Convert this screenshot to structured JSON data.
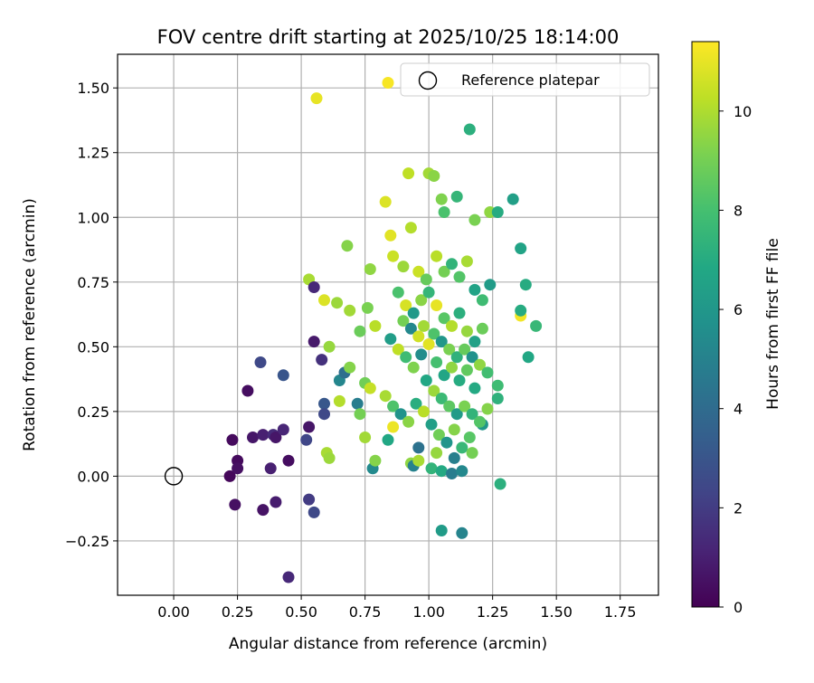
{
  "chart_data": {
    "type": "scatter",
    "title": "FOV centre drift starting at 2025/10/25 18:14:00",
    "xlabel": "Angular distance from reference (arcmin)",
    "ylabel": "Rotation from reference (arcmin)",
    "xlim": [
      -0.22,
      1.9
    ],
    "ylim": [
      -0.46,
      1.63
    ],
    "xticks": [
      0.0,
      0.25,
      0.5,
      0.75,
      1.0,
      1.25,
      1.5,
      1.75
    ],
    "xtick_labels": [
      "0.00",
      "0.25",
      "0.50",
      "0.75",
      "1.00",
      "1.25",
      "1.50",
      "1.75"
    ],
    "yticks": [
      -0.25,
      0.0,
      0.25,
      0.5,
      0.75,
      1.0,
      1.25,
      1.5
    ],
    "ytick_labels": [
      "−0.25",
      "0.00",
      "0.25",
      "0.50",
      "0.75",
      "1.00",
      "1.25",
      "1.50"
    ],
    "grid": true,
    "legend": {
      "placement": "top-right",
      "entry": "Reference platepar"
    },
    "reference_point": {
      "x": 0.0,
      "y": 0.0
    },
    "colorbar": {
      "label": "Hours from first FF file",
      "colormap": "viridis",
      "range": [
        0,
        11.4
      ],
      "ticks": [
        0,
        2,
        4,
        6,
        8,
        10
      ],
      "tick_labels": [
        "0",
        "2",
        "4",
        "6",
        "8",
        "10"
      ]
    },
    "points": [
      [
        0.56,
        1.46,
        11.0
      ],
      [
        1.16,
        1.34,
        7.2
      ],
      [
        0.84,
        1.52,
        11.3
      ],
      [
        0.83,
        1.06,
        10.8
      ],
      [
        0.92,
        1.17,
        10.3
      ],
      [
        0.93,
        0.96,
        10.1
      ],
      [
        1.0,
        1.17,
        9.8
      ],
      [
        1.02,
        1.16,
        9.4
      ],
      [
        1.05,
        1.07,
        9.2
      ],
      [
        1.11,
        1.08,
        7.5
      ],
      [
        1.06,
        1.02,
        8.1
      ],
      [
        1.33,
        1.07,
        6.4
      ],
      [
        0.68,
        0.89,
        9.3
      ],
      [
        0.85,
        0.93,
        10.9
      ],
      [
        0.86,
        0.85,
        10.5
      ],
      [
        0.77,
        0.8,
        9.5
      ],
      [
        0.53,
        0.76,
        9.9
      ],
      [
        0.55,
        0.73,
        1.3
      ],
      [
        0.59,
        0.68,
        10.8
      ],
      [
        0.64,
        0.67,
        9.7
      ],
      [
        0.69,
        0.64,
        9.8
      ],
      [
        0.76,
        0.65,
        9.1
      ],
      [
        0.73,
        0.56,
        8.8
      ],
      [
        0.79,
        0.58,
        10.2
      ],
      [
        0.55,
        0.52,
        0.8
      ],
      [
        0.61,
        0.5,
        9.6
      ],
      [
        0.58,
        0.45,
        1.6
      ],
      [
        0.65,
        0.37,
        5.2
      ],
      [
        0.67,
        0.4,
        4.1
      ],
      [
        0.69,
        0.42,
        9.3
      ],
      [
        0.72,
        0.28,
        4.8
      ],
      [
        0.73,
        0.24,
        9.0
      ],
      [
        0.75,
        0.36,
        8.9
      ],
      [
        0.77,
        0.34,
        10.4
      ],
      [
        0.65,
        0.29,
        10.1
      ],
      [
        0.59,
        0.28,
        3.1
      ],
      [
        0.59,
        0.24,
        2.5
      ],
      [
        0.6,
        0.09,
        9.9
      ],
      [
        0.61,
        0.07,
        9.7
      ],
      [
        0.75,
        0.15,
        9.8
      ],
      [
        0.78,
        0.03,
        5.4
      ],
      [
        0.79,
        0.06,
        9.3
      ],
      [
        0.84,
        0.14,
        6.8
      ],
      [
        0.86,
        0.19,
        11.1
      ],
      [
        0.93,
        0.05,
        9.5
      ],
      [
        0.94,
        0.04,
        5.0
      ],
      [
        0.96,
        0.06,
        9.9
      ],
      [
        1.01,
        0.03,
        7.4
      ],
      [
        1.05,
        0.02,
        6.9
      ],
      [
        1.09,
        0.01,
        4.8
      ],
      [
        1.13,
        0.02,
        5.3
      ],
      [
        1.05,
        -0.21,
        6.2
      ],
      [
        1.13,
        -0.22,
        5.1
      ],
      [
        1.28,
        -0.03,
        7.2
      ],
      [
        1.27,
        0.3,
        7.3
      ],
      [
        1.27,
        0.35,
        7.8
      ],
      [
        1.23,
        0.26,
        9.3
      ],
      [
        1.21,
        0.2,
        6.0
      ],
      [
        1.36,
        0.62,
        11.2
      ],
      [
        1.42,
        0.58,
        7.6
      ],
      [
        1.39,
        0.46,
        6.8
      ],
      [
        1.36,
        0.64,
        7.0
      ],
      [
        1.38,
        0.74,
        7.0
      ],
      [
        1.36,
        0.88,
        6.6
      ],
      [
        1.24,
        1.02,
        9.5
      ],
      [
        1.27,
        1.02,
        7.0
      ],
      [
        1.18,
        0.99,
        9.1
      ],
      [
        0.22,
        0.0,
        0.2
      ],
      [
        0.23,
        0.14,
        0.3
      ],
      [
        0.25,
        0.06,
        0.3
      ],
      [
        0.25,
        0.03,
        0.5
      ],
      [
        0.24,
        -0.11,
        0.5
      ],
      [
        0.29,
        0.33,
        0.4
      ],
      [
        0.31,
        0.15,
        0.7
      ],
      [
        0.34,
        0.44,
        2.5
      ],
      [
        0.35,
        0.16,
        1.0
      ],
      [
        0.38,
        0.03,
        1.0
      ],
      [
        0.39,
        0.16,
        1.4
      ],
      [
        0.4,
        0.15,
        0.7
      ],
      [
        0.4,
        -0.1,
        0.9
      ],
      [
        0.35,
        -0.13,
        0.6
      ],
      [
        0.43,
        0.39,
        3.0
      ],
      [
        0.43,
        0.18,
        1.2
      ],
      [
        0.45,
        0.06,
        0.4
      ],
      [
        0.52,
        0.14,
        2.4
      ],
      [
        0.53,
        0.19,
        0.7
      ],
      [
        0.53,
        -0.09,
        2.0
      ],
      [
        0.55,
        -0.14,
        2.5
      ],
      [
        0.45,
        -0.39,
        1.3
      ],
      [
        0.9,
        0.81,
        9.7
      ],
      [
        0.96,
        0.79,
        10.5
      ],
      [
        0.99,
        0.76,
        8.7
      ],
      [
        1.03,
        0.85,
        10.2
      ],
      [
        1.06,
        0.79,
        9.0
      ],
      [
        1.09,
        0.82,
        7.4
      ],
      [
        1.12,
        0.77,
        8.3
      ],
      [
        1.15,
        0.83,
        9.9
      ],
      [
        1.18,
        0.72,
        6.6
      ],
      [
        1.21,
        0.68,
        7.8
      ],
      [
        1.24,
        0.74,
        6.2
      ],
      [
        0.88,
        0.71,
        8.1
      ],
      [
        0.91,
        0.66,
        10.7
      ],
      [
        0.94,
        0.63,
        6.1
      ],
      [
        0.97,
        0.68,
        9.4
      ],
      [
        1.0,
        0.71,
        7.5
      ],
      [
        1.03,
        0.66,
        11.0
      ],
      [
        1.06,
        0.61,
        8.4
      ],
      [
        1.09,
        0.58,
        10.1
      ],
      [
        1.12,
        0.63,
        7.2
      ],
      [
        1.15,
        0.56,
        9.6
      ],
      [
        1.18,
        0.52,
        6.5
      ],
      [
        1.21,
        0.57,
        8.8
      ],
      [
        0.85,
        0.53,
        6.3
      ],
      [
        0.88,
        0.49,
        10.3
      ],
      [
        0.91,
        0.46,
        7.8
      ],
      [
        0.94,
        0.42,
        9.2
      ],
      [
        0.97,
        0.47,
        5.5
      ],
      [
        1.0,
        0.51,
        10.9
      ],
      [
        1.03,
        0.44,
        8.0
      ],
      [
        1.06,
        0.39,
        6.7
      ],
      [
        1.09,
        0.42,
        9.5
      ],
      [
        1.12,
        0.37,
        7.0
      ],
      [
        1.15,
        0.41,
        8.6
      ],
      [
        1.18,
        0.34,
        6.9
      ],
      [
        0.83,
        0.31,
        9.9
      ],
      [
        0.86,
        0.27,
        8.2
      ],
      [
        0.89,
        0.24,
        5.8
      ],
      [
        0.92,
        0.21,
        9.4
      ],
      [
        0.95,
        0.28,
        7.1
      ],
      [
        0.98,
        0.25,
        10.2
      ],
      [
        1.01,
        0.2,
        6.4
      ],
      [
        1.04,
        0.16,
        8.9
      ],
      [
        1.07,
        0.13,
        5.9
      ],
      [
        1.1,
        0.18,
        9.3
      ],
      [
        1.13,
        0.11,
        7.6
      ],
      [
        1.16,
        0.15,
        8.4
      ],
      [
        0.96,
        0.11,
        4.3
      ],
      [
        1.03,
        0.09,
        9.6
      ],
      [
        1.1,
        0.07,
        4.9
      ],
      [
        1.17,
        0.09,
        9.0
      ],
      [
        0.98,
        0.58,
        9.8
      ],
      [
        1.02,
        0.55,
        8.2
      ],
      [
        1.05,
        0.52,
        6.0
      ],
      [
        1.08,
        0.49,
        9.1
      ],
      [
        1.11,
        0.46,
        7.3
      ],
      [
        1.14,
        0.49,
        8.7
      ],
      [
        1.17,
        0.46,
        5.7
      ],
      [
        1.2,
        0.43,
        9.5
      ],
      [
        0.9,
        0.6,
        9.0
      ],
      [
        0.93,
        0.57,
        5.3
      ],
      [
        0.96,
        0.54,
        10.6
      ],
      [
        0.99,
        0.37,
        6.8
      ],
      [
        1.02,
        0.33,
        9.7
      ],
      [
        1.05,
        0.3,
        7.7
      ],
      [
        1.08,
        0.27,
        8.5
      ],
      [
        1.11,
        0.24,
        6.2
      ],
      [
        1.14,
        0.27,
        9.1
      ],
      [
        1.17,
        0.24,
        7.4
      ],
      [
        1.2,
        0.21,
        8.3
      ],
      [
        1.23,
        0.4,
        7.9
      ]
    ]
  }
}
